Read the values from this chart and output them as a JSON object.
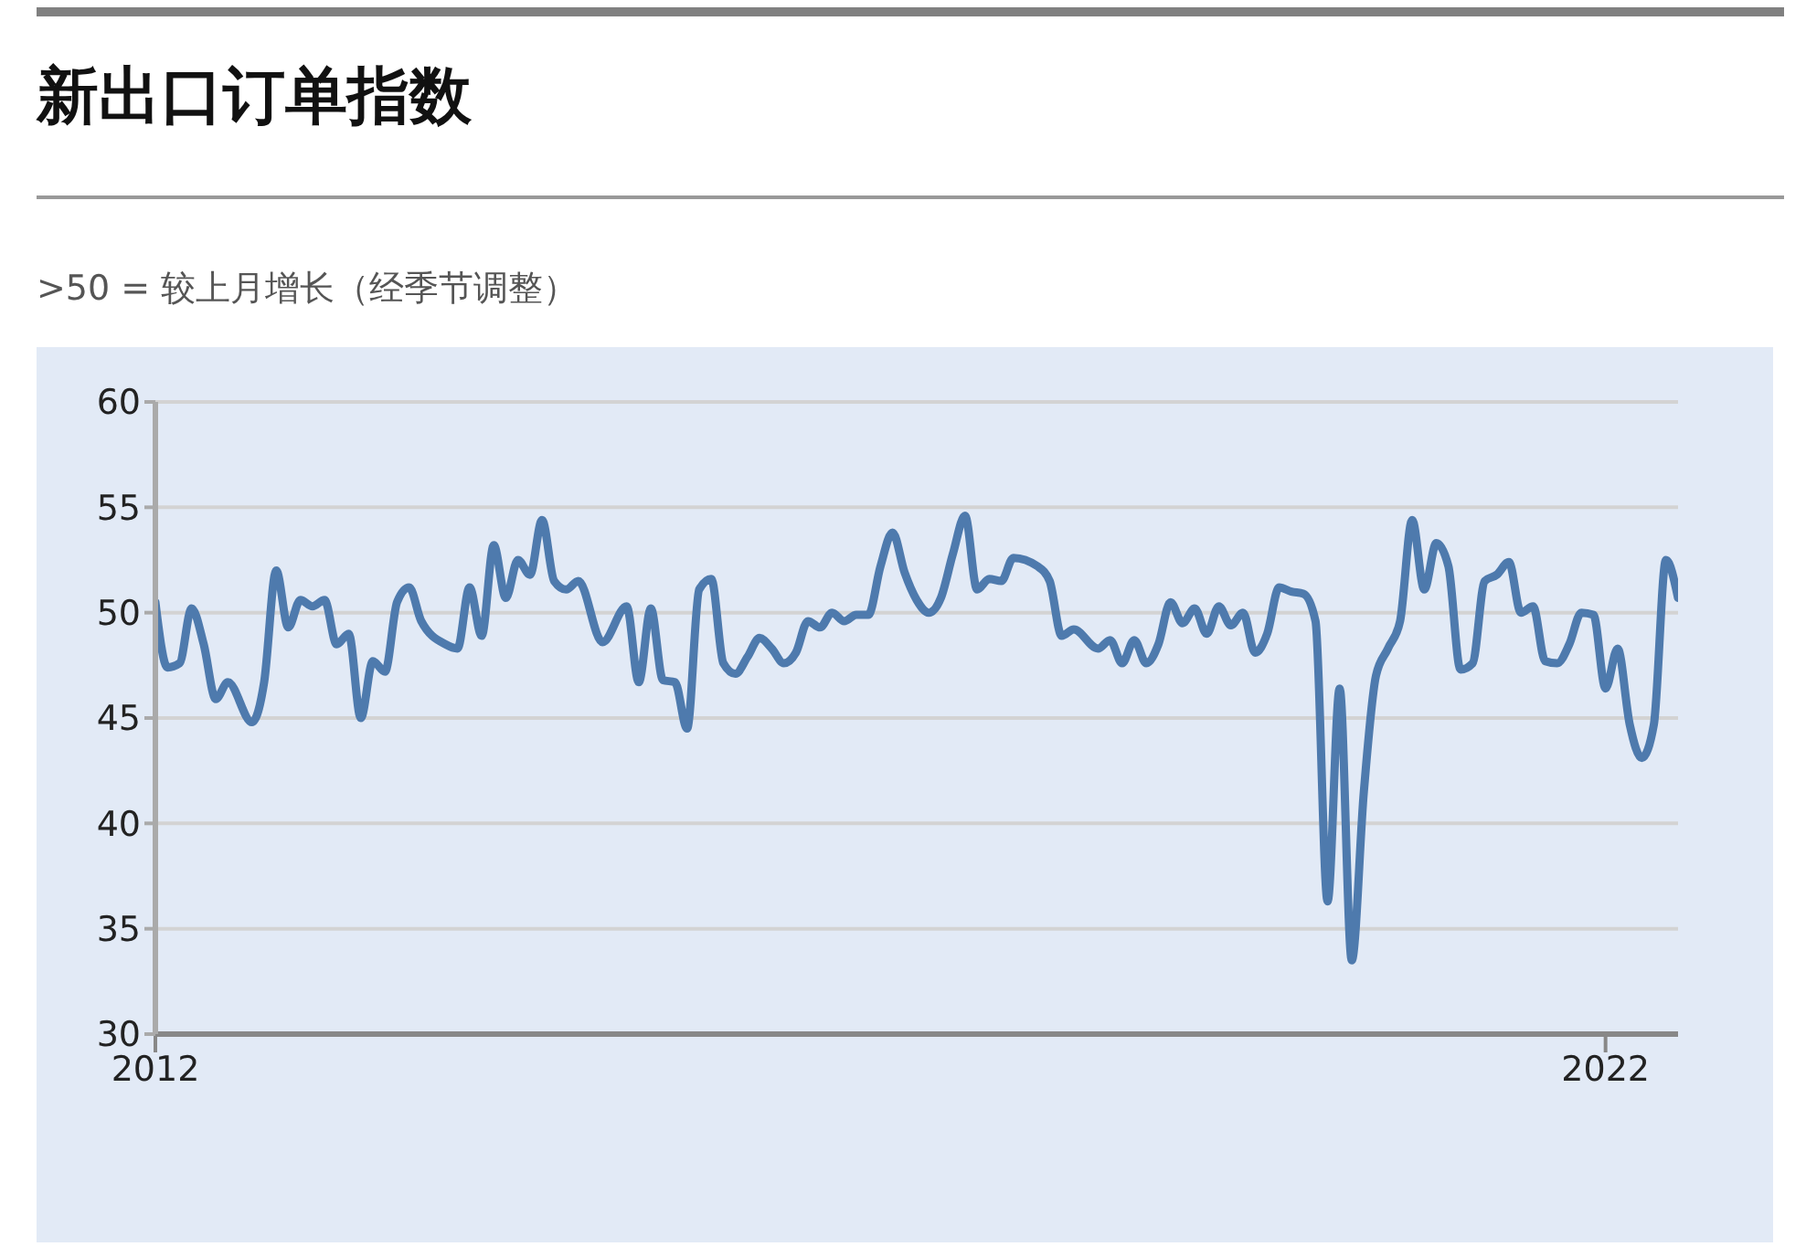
{
  "chart_data": {
    "type": "line",
    "title": "新出口订单指数",
    "subtitle": ">50 = 较上月增长（经季节调整）",
    "x": [
      "2012-01",
      "2012-02",
      "2012-03",
      "2012-04",
      "2012-05",
      "2012-06",
      "2012-07",
      "2012-09",
      "2012-10",
      "2012-11",
      "2012-12",
      "2013-01",
      "2013-02",
      "2013-03",
      "2013-04",
      "2013-05",
      "2013-06",
      "2013-07",
      "2013-08",
      "2013-09",
      "2013-10",
      "2013-11",
      "2014-01",
      "2014-02",
      "2014-03",
      "2014-04",
      "2014-05",
      "2014-06",
      "2014-07",
      "2014-08",
      "2014-09",
      "2014-10",
      "2014-11",
      "2014-12",
      "2015-02",
      "2015-04",
      "2015-05",
      "2015-06",
      "2015-07",
      "2015-08",
      "2015-09",
      "2015-10",
      "2015-11",
      "2015-12",
      "2016-01",
      "2016-02",
      "2016-03",
      "2016-04",
      "2016-05",
      "2016-06",
      "2016-07",
      "2016-08",
      "2016-09",
      "2016-10",
      "2016-11",
      "2016-12",
      "2017-01",
      "2017-02",
      "2017-03",
      "2017-04",
      "2017-05",
      "2017-06",
      "2017-07",
      "2017-08",
      "2017-09",
      "2017-10",
      "2017-11",
      "2017-12",
      "2018-02",
      "2018-03",
      "2018-04",
      "2018-05",
      "2018-07",
      "2018-08",
      "2018-09",
      "2018-10",
      "2018-11",
      "2018-12",
      "2019-01",
      "2019-02",
      "2019-03",
      "2019-04",
      "2019-05",
      "2019-06",
      "2019-07",
      "2019-08",
      "2019-09",
      "2019-10",
      "2019-11",
      "2019-12",
      "2020-01",
      "2020-02",
      "2020-03",
      "2020-04",
      "2020-05",
      "2020-06",
      "2020-07",
      "2020-08",
      "2020-09",
      "2020-10",
      "2020-11",
      "2020-12",
      "2021-01",
      "2021-02",
      "2021-03",
      "2021-04",
      "2021-05",
      "2021-06",
      "2021-07",
      "2021-08",
      "2021-09",
      "2021-10",
      "2021-11",
      "2021-12",
      "2022-01",
      "2022-02",
      "2022-03",
      "2022-04",
      "2022-05",
      "2022-06",
      "2022-07"
    ],
    "series": [
      {
        "color": "#4e7aad",
        "values": [
          50.5,
          47.4,
          47.6,
          50.2,
          48.5,
          45.9,
          46.7,
          44.8,
          46.7,
          52.0,
          49.3,
          50.6,
          50.3,
          50.6,
          48.5,
          49.0,
          45.0,
          47.7,
          47.2,
          50.5,
          51.2,
          49.6,
          48.5,
          48.3,
          51.2,
          48.9,
          53.2,
          50.7,
          52.5,
          51.8,
          54.4,
          51.5,
          51.1,
          51.5,
          48.6,
          50.3,
          46.7,
          50.2,
          46.8,
          46.7,
          44.5,
          51.1,
          51.6,
          47.6,
          47.1,
          47.9,
          48.8,
          48.3,
          47.6,
          48.1,
          49.6,
          49.3,
          50.0,
          49.6,
          49.9,
          49.9,
          52.2,
          53.8,
          51.9,
          50.6,
          50.0,
          50.7,
          52.8,
          54.6,
          51.1,
          51.6,
          51.5,
          52.6,
          52.2,
          51.5,
          48.9,
          49.2,
          48.3,
          48.7,
          47.6,
          48.7,
          47.6,
          48.5,
          50.5,
          49.5,
          50.2,
          49.0,
          50.3,
          49.4,
          50.0,
          48.1,
          49.0,
          51.2,
          51.0,
          50.9,
          49.6,
          36.3,
          46.4,
          33.5,
          41.5,
          47.0,
          48.3,
          49.6,
          54.4,
          51.1,
          53.3,
          52.2,
          47.3,
          47.6,
          51.5,
          51.8,
          52.4,
          50.0,
          50.3,
          47.7,
          47.6,
          48.5,
          50.0,
          49.9,
          46.4,
          48.3,
          44.7,
          43.1,
          44.7,
          52.5,
          50.7
        ]
      }
    ],
    "xlim": [
      "2012-01",
      "2022-07"
    ],
    "xticks": [
      {
        "value": "2012-01",
        "label": "2012"
      },
      {
        "value": "2022-01",
        "label": "2022"
      }
    ],
    "ylim": [
      30,
      60
    ],
    "yticks": [
      30,
      35,
      40,
      45,
      50,
      55,
      60
    ],
    "grid": "y",
    "marker": "none",
    "line_style": "solid"
  }
}
